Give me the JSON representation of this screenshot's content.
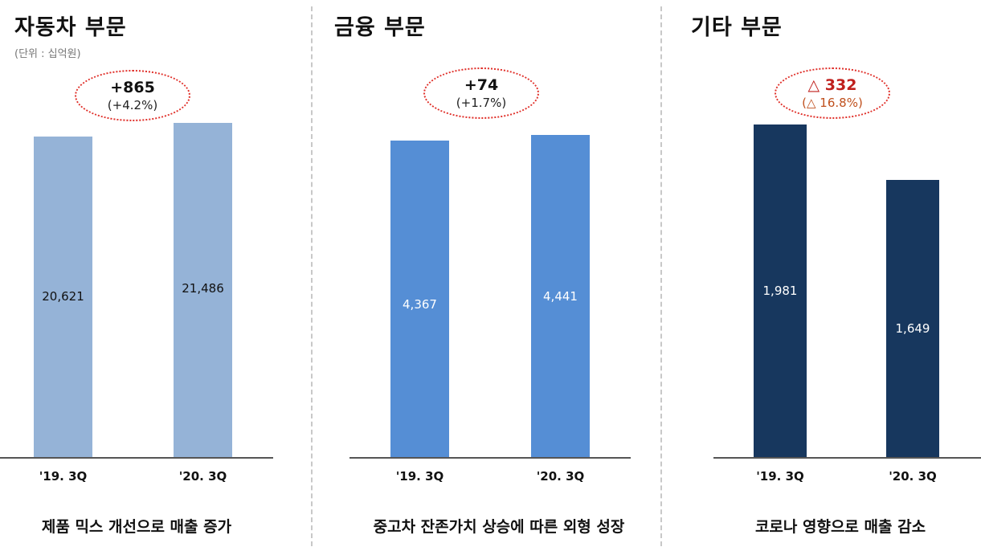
{
  "chart_data": [
    {
      "type": "bar",
      "title": "자동차 부문",
      "unit": "(단위 : 십억원)",
      "categories": [
        "'19. 3Q",
        "'20. 3Q"
      ],
      "values": [
        20621,
        21486
      ],
      "value_labels": [
        "20,621",
        "21,486"
      ],
      "change": "+865",
      "change_pct": "(+4.2%)",
      "caption": "제품 믹스 개선으로 매출 증가",
      "bar_color": "#95b3d7",
      "label_color": "#111111",
      "change_negative": false
    },
    {
      "type": "bar",
      "title": "금융 부문",
      "categories": [
        "'19. 3Q",
        "'20. 3Q"
      ],
      "values": [
        4367,
        4441
      ],
      "value_labels": [
        "4,367",
        "4,441"
      ],
      "change": "+74",
      "change_pct": "(+1.7%)",
      "caption": "중고차 잔존가치 상승에 따른 외형 성장",
      "bar_color": "#558ed5",
      "label_color": "#ffffff",
      "change_negative": false
    },
    {
      "type": "bar",
      "title": "기타 부문",
      "categories": [
        "'19. 3Q",
        "'20. 3Q"
      ],
      "values": [
        1981,
        1649
      ],
      "value_labels": [
        "1,981",
        "1,649"
      ],
      "change": "△ 332",
      "change_pct": "(△ 16.8%)",
      "caption": "코로나 영향으로 매출 감소",
      "bar_color": "#17375e",
      "label_color": "#ffffff",
      "change_negative": true
    }
  ],
  "colors": {
    "badge_border": "#e0302a",
    "divider": "#c8c8c8"
  }
}
